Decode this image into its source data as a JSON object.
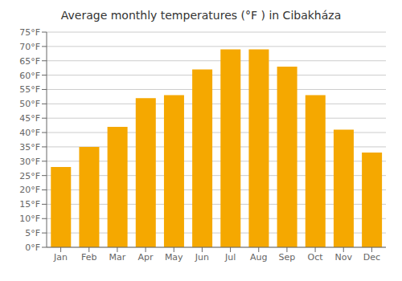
{
  "chart_data": {
    "type": "bar",
    "title": "Average monthly temperatures (°F ) in Cibakháza",
    "categories": [
      "Jan",
      "Feb",
      "Mar",
      "Apr",
      "May",
      "Jun",
      "Jul",
      "Aug",
      "Sep",
      "Oct",
      "Nov",
      "Dec"
    ],
    "values": [
      28,
      35,
      42,
      52,
      53,
      62,
      69,
      69,
      63,
      53,
      41,
      33
    ],
    "color": "#F5A800",
    "ylim": [
      0,
      75
    ],
    "yticks": [
      {
        "value": 0,
        "label": "0°F"
      },
      {
        "value": 5,
        "label": "5°F"
      },
      {
        "value": 10,
        "label": "10°F"
      },
      {
        "value": 15,
        "label": "15°F"
      },
      {
        "value": 20,
        "label": "20°F"
      },
      {
        "value": 25,
        "label": "25°F"
      },
      {
        "value": 30,
        "label": "30°F"
      },
      {
        "value": 35,
        "label": "35°F"
      },
      {
        "value": 40,
        "label": "40°F"
      },
      {
        "value": 45,
        "label": "45°F"
      },
      {
        "value": 50,
        "label": "50°F"
      },
      {
        "value": 55,
        "label": "55°F"
      },
      {
        "value": 60,
        "label": "60°F"
      },
      {
        "value": 65,
        "label": "65°F"
      },
      {
        "value": 70,
        "label": "70°F"
      },
      {
        "value": 75,
        "label": "75°F"
      }
    ],
    "grid": true
  }
}
